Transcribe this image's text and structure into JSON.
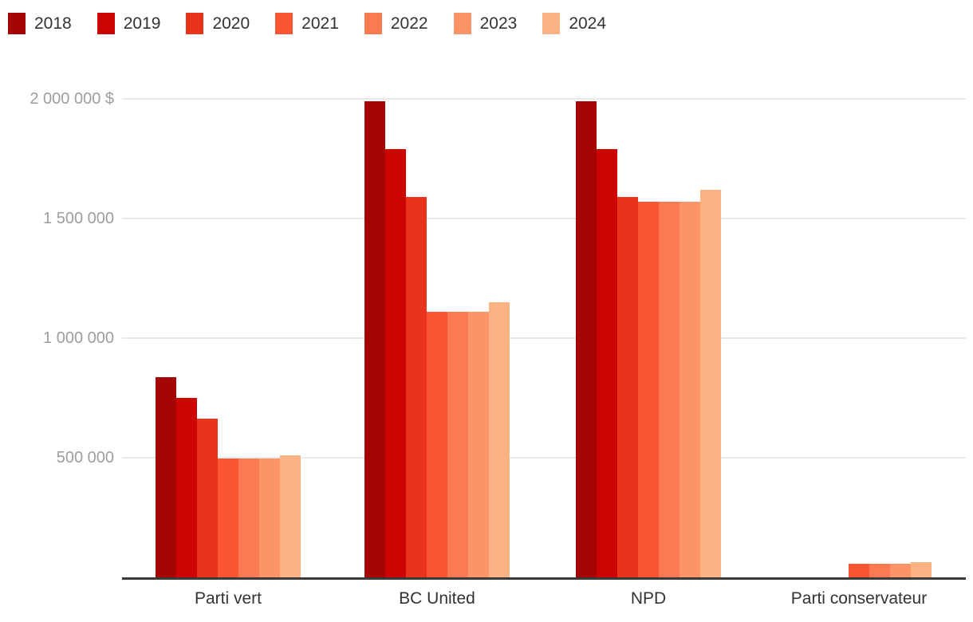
{
  "chart_data": {
    "type": "bar",
    "title": "",
    "categories": [
      "Parti vert",
      "BC United",
      "NPD",
      "Parti conservateur"
    ],
    "series": [
      {
        "name": "2018",
        "color": "#a60303",
        "values": [
          835000,
          1990000,
          1990000,
          0
        ]
      },
      {
        "name": "2019",
        "color": "#cc0404",
        "values": [
          750000,
          1790000,
          1790000,
          0
        ]
      },
      {
        "name": "2020",
        "color": "#e8341a",
        "values": [
          662000,
          1590000,
          1590000,
          0
        ]
      },
      {
        "name": "2021",
        "color": "#fb5531",
        "values": [
          495000,
          1110000,
          1570000,
          55000
        ]
      },
      {
        "name": "2022",
        "color": "#fc7a52",
        "values": [
          495000,
          1110000,
          1570000,
          55000
        ]
      },
      {
        "name": "2023",
        "color": "#fd9468",
        "values": [
          495000,
          1110000,
          1570000,
          55000
        ]
      },
      {
        "name": "2024",
        "color": "#fdb283",
        "values": [
          510000,
          1150000,
          1620000,
          62000
        ]
      }
    ],
    "ylim": [
      0,
      2000000
    ],
    "y_ticks": [
      {
        "label": "500 000",
        "value": 500000
      },
      {
        "label": "1 000 000",
        "value": 1000000
      },
      {
        "label": "1 500 000",
        "value": 1500000
      },
      {
        "label": "2 000 000 $",
        "value": 2000000
      }
    ],
    "grid": "horizontal",
    "legend_position": "top-left",
    "colors": {
      "axis_line": "#3a3a3a",
      "gridline": "#e9e9e9",
      "tick_label": "#9d9d9d",
      "category_label": "#333333",
      "legend_label": "#333333",
      "background": "#ffffff"
    }
  }
}
